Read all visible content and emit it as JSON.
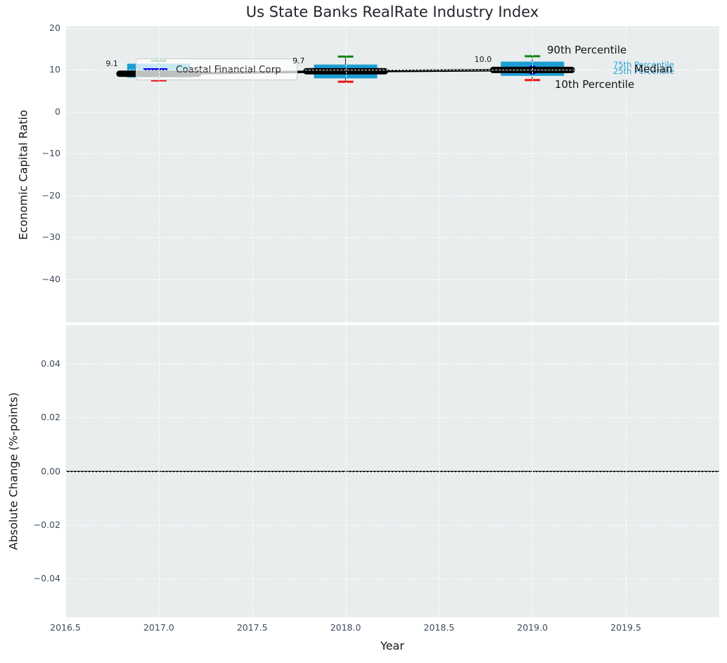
{
  "chart_data": [
    {
      "type": "boxplot",
      "title": "Us State Banks RealRate Industry Index",
      "xlabel": "Year",
      "ylabel": "Economic Capital Ratio",
      "xlim": [
        2016.5,
        2020.0
      ],
      "ylim": [
        -50.3,
        20.5
      ],
      "grid": true,
      "xticks": [
        2016.5,
        2017.0,
        2017.5,
        2018.0,
        2018.5,
        2019.0,
        2019.5
      ],
      "xtick_labels": [
        "2016.5",
        "2017.0",
        "2017.5",
        "2018.0",
        "2018.5",
        "2019.0",
        "2019.5"
      ],
      "yticks": [
        20,
        10,
        0,
        -10,
        -20,
        -30,
        -40
      ],
      "ytick_labels": [
        "20",
        "10",
        "0",
        "−10",
        "−20",
        "−30",
        "−40"
      ],
      "legend": {
        "label": "Coastal Financial Corp",
        "line_color": "#0000ee",
        "position": "upper left"
      },
      "company_series": {
        "name": "Coastal Financial Corp",
        "x": [
          2017,
          2018,
          2019
        ],
        "values": [
          9.1,
          9.7,
          10.0
        ],
        "value_labels": [
          "9.1",
          "9.7",
          "10.0"
        ],
        "line_color": "#000000",
        "marker": {
          "x": 2019,
          "value": 10.0,
          "color": "#0000cc"
        }
      },
      "industry_boxplots": [
        {
          "x": 2017,
          "p10": 7.5,
          "p25": 8.2,
          "p75": 11.5,
          "p90": 12.2
        },
        {
          "x": 2018,
          "p10": 7.2,
          "p25": 8.0,
          "p75": 11.3,
          "p90": 13.2
        },
        {
          "x": 2019,
          "p10": 7.6,
          "p25": 8.6,
          "p75": 12.0,
          "p90": 13.3
        }
      ],
      "box_color": "#1c9ed3",
      "whisker_color": "#3a3a3a",
      "cap_colors": {
        "p90": "#108510",
        "p10": "#ee1111"
      },
      "annotations": [
        {
          "text": "90th Percentile",
          "color": "#141414"
        },
        {
          "text": "75th Percentile",
          "color": "#2aa0d2"
        },
        {
          "text": "25th Percentile",
          "color": "#2aa0d2"
        },
        {
          "text": "Median",
          "color": "#141414"
        },
        {
          "text": "10th Percentile",
          "color": "#141414"
        }
      ]
    },
    {
      "type": "line",
      "xlabel": "Year",
      "ylabel": "Absolute Change (%-points)",
      "xlim": [
        2016.5,
        2020.0
      ],
      "ylim": [
        -0.0545,
        0.0545
      ],
      "grid": true,
      "xticks": [
        2016.5,
        2017.0,
        2017.5,
        2018.0,
        2018.5,
        2019.0,
        2019.5
      ],
      "xtick_labels": [
        "2016.5",
        "2017.0",
        "2017.5",
        "2018.0",
        "2018.5",
        "2019.0",
        "2019.5"
      ],
      "yticks": [
        0.04,
        0.02,
        0.0,
        -0.02,
        -0.04
      ],
      "ytick_labels": [
        "0.04",
        "0.02",
        "0.00",
        "−0.02",
        "−0.04"
      ],
      "zero_line_value": 0.0,
      "zero_line_color": "#000000"
    }
  ]
}
